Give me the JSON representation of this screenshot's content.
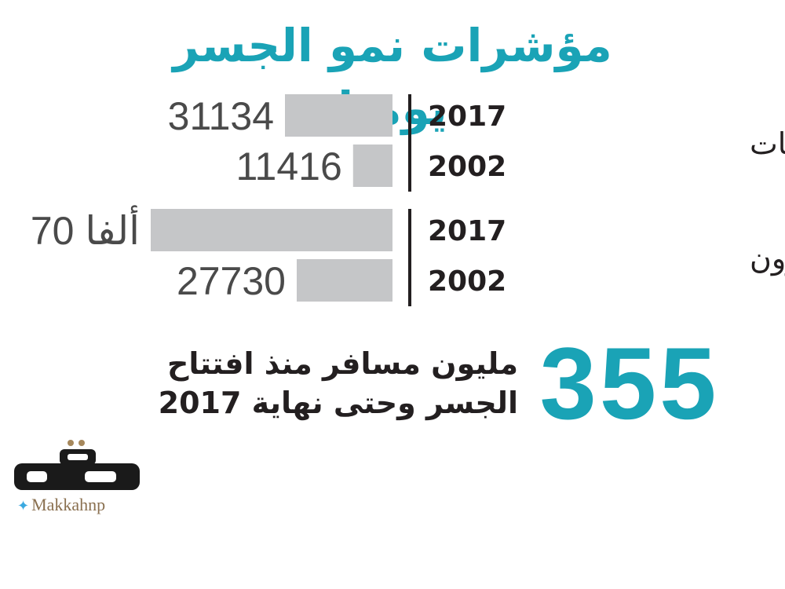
{
  "title": "مؤشرات نمو الجسر يوميا",
  "colors": {
    "accent": "#1aa3b6",
    "bar": "#c5c6c8",
    "text": "#231f20",
    "value_text": "#4a4a4a",
    "logo_gold": "#a6885c"
  },
  "chart_data": {
    "type": "bar",
    "orientation": "horizontal",
    "title": "مؤشرات نمو الجسر يوميا",
    "groups": [
      {
        "label": "عبور المركبات",
        "bars": [
          {
            "year": "2017",
            "value": 31134,
            "value_label": "31134"
          },
          {
            "year": "2002",
            "value": 11416,
            "value_label": "11416"
          }
        ]
      },
      {
        "label": "المسافرون",
        "bars": [
          {
            "year": "2017",
            "value": 70000,
            "value_label": "70 ألفا"
          },
          {
            "year": "2002",
            "value": 27730,
            "value_label": "27730"
          }
        ]
      }
    ]
  },
  "highlight": {
    "number": "355",
    "line1": "مليون مسافر منذ افتتاح",
    "line2": "الجسر وحتى نهاية 2017"
  },
  "logo": {
    "name": "مكة",
    "twitter_handle": "Makkahnp",
    "icon": "twitter-bird-icon"
  }
}
